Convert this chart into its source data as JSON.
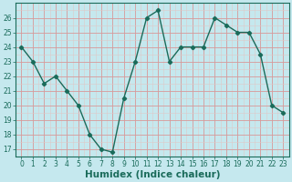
{
  "x": [
    0,
    1,
    2,
    3,
    4,
    5,
    6,
    7,
    8,
    9,
    10,
    11,
    12,
    13,
    14,
    15,
    16,
    17,
    18,
    19,
    20,
    21,
    22,
    23
  ],
  "y": [
    24,
    23,
    21.5,
    22,
    21,
    20,
    18,
    17,
    16.8,
    20.5,
    23,
    26,
    26.5,
    23,
    24,
    24,
    24,
    26,
    25.5,
    25,
    25,
    23.5,
    20,
    19.5
  ],
  "line_color": "#1a6b5a",
  "marker": "D",
  "marker_size": 2.2,
  "bg_color": "#c5e8ee",
  "grid_major_color": "#e8a0a0",
  "grid_minor_color": "#f0c8c8",
  "xlabel": "Humidex (Indice chaleur)",
  "ylabel": "",
  "xlim": [
    -0.5,
    23.5
  ],
  "ylim": [
    16.5,
    27.0
  ],
  "yticks": [
    17,
    18,
    19,
    20,
    21,
    22,
    23,
    24,
    25,
    26
  ],
  "xticks": [
    0,
    1,
    2,
    3,
    4,
    5,
    6,
    7,
    8,
    9,
    10,
    11,
    12,
    13,
    14,
    15,
    16,
    17,
    18,
    19,
    20,
    21,
    22,
    23
  ],
  "tick_label_fontsize": 5.5,
  "xlabel_fontsize": 7.5,
  "line_width": 1.0
}
